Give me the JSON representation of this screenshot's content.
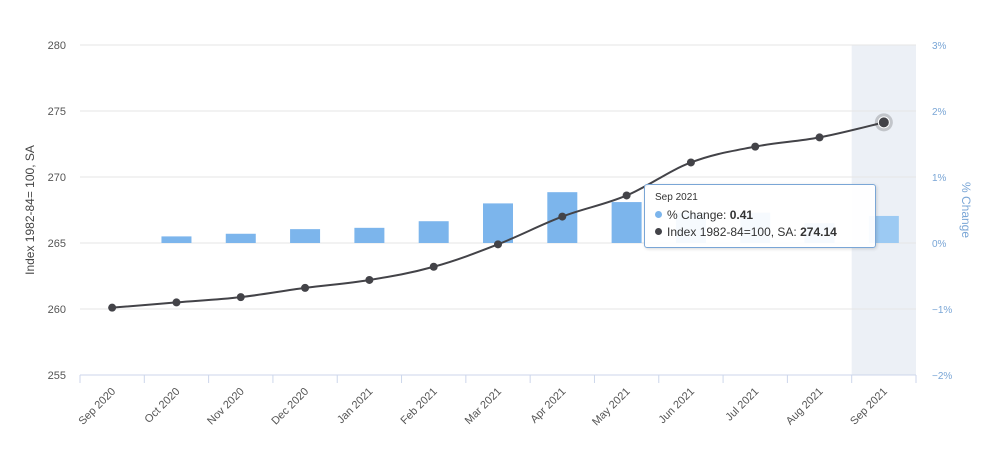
{
  "chart_data": {
    "type": "bar+line",
    "categories": [
      "Sep 2020",
      "Oct 2020",
      "Nov 2020",
      "Dec 2020",
      "Jan 2021",
      "Feb 2021",
      "Mar 2021",
      "Apr 2021",
      "May 2021",
      "Jun 2021",
      "Jul 2021",
      "Aug 2021",
      "Sep 2021"
    ],
    "series": [
      {
        "name": "% Change",
        "type": "bar",
        "axis": "right",
        "color": "#7cb5ec",
        "values": [
          null,
          0.1,
          0.14,
          0.21,
          0.23,
          0.33,
          0.6,
          0.77,
          0.62,
          0.46,
          0.46,
          0.3,
          0.41
        ]
      },
      {
        "name": "Index 1982-84=100, SA",
        "type": "line",
        "axis": "left",
        "color": "#434348",
        "values": [
          260.1,
          260.5,
          260.9,
          261.6,
          262.2,
          263.2,
          264.9,
          267.0,
          268.6,
          271.1,
          272.3,
          273.0,
          274.14
        ]
      }
    ],
    "y_left": {
      "label": "Index 1982-84= 100, SA",
      "ticks": [
        255,
        260,
        265,
        270,
        275,
        280
      ],
      "ylim": [
        255,
        280
      ]
    },
    "y_right": {
      "label": "% Change",
      "ticks": [
        "3%",
        "2%",
        "1%",
        "0%",
        "−1%",
        "−2%"
      ],
      "ylim": [
        -2,
        3
      ]
    },
    "grid": true,
    "highlighted_category": "Sep 2021"
  },
  "tooltip": {
    "date": "Sep 2021",
    "rows": [
      {
        "label": "% Change: ",
        "value": "0.41",
        "color": "#7cb5ec"
      },
      {
        "label": "Index 1982-84=100, SA: ",
        "value": "274.14",
        "color": "#434348"
      }
    ]
  }
}
